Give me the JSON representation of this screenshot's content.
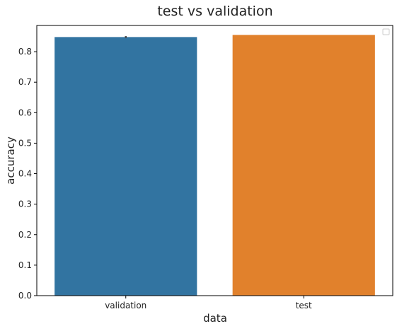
{
  "chart_data": {
    "type": "bar",
    "title": "test vs validation",
    "xlabel": "data",
    "ylabel": "accuracy",
    "categories": [
      "validation",
      "test"
    ],
    "values": [
      0.848,
      0.855
    ],
    "error_bars": [
      0.003,
      0
    ],
    "colors": [
      "#3274a1",
      "#e1812c"
    ],
    "ylim": [
      0,
      0.886
    ],
    "yticks": [
      "0.0",
      "0.1",
      "0.2",
      "0.3",
      "0.4",
      "0.5",
      "0.6",
      "0.7",
      "0.8"
    ],
    "grid": false,
    "legend": {
      "position": "top-right",
      "entries": []
    }
  }
}
